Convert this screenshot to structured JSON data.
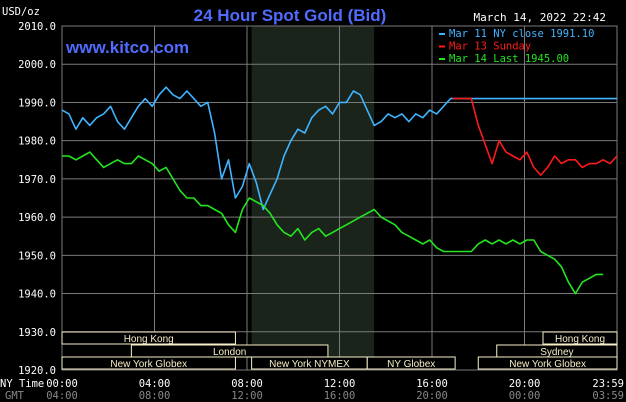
{
  "header": {
    "unit": "USD/oz",
    "title": "24 Hour Spot Gold (Bid)",
    "timestamp": "March 14, 2022 22:42",
    "website": "www.kitco.com"
  },
  "colors": {
    "background": "#000000",
    "grid": "#7a7a7a",
    "title": "#4f6cff",
    "website": "#4f6cff",
    "mar11": "#3fb4ff",
    "mar13": "#ff1a1a",
    "mar14": "#22e61e",
    "session_bar": "#f7efc8",
    "shade": "#1a241a"
  },
  "legend": [
    {
      "label": "Mar 11 NY close 1991.10",
      "color": "#3fb4ff"
    },
    {
      "label": "Mar 13 Sunday",
      "color": "#ff1a1a"
    },
    {
      "label": "Mar 14 Last 1945.00",
      "color": "#22e61e"
    }
  ],
  "time_axis": {
    "ny_label": "NY Time",
    "gmt_label": "GMT",
    "ny_ticks": [
      "00:00",
      "04:00",
      "08:00",
      "12:00",
      "16:00",
      "20:00",
      "23:59"
    ],
    "gmt_ticks": [
      "04:00",
      "08:00",
      "12:00",
      "16:00",
      "20:00",
      "00:00",
      "03:59"
    ]
  },
  "sessions": [
    {
      "name": "Hong Kong",
      "row": 0,
      "start": 0.0,
      "end": 7.5
    },
    {
      "name": "London",
      "row": 1,
      "start": 3.0,
      "end": 11.5
    },
    {
      "name": "New York Globex",
      "row": 2,
      "start": 0.0,
      "end": 7.5
    },
    {
      "name": "New York NYMEX",
      "row": 2,
      "start": 8.2,
      "end": 13.2
    },
    {
      "name": "NY Globex",
      "row": 2,
      "start": 13.2,
      "end": 17.0
    },
    {
      "name": "Hong Kong",
      "row": 0,
      "start": 20.8,
      "end": 24.0
    },
    {
      "name": "Sydney",
      "row": 1,
      "start": 18.8,
      "end": 24.0
    },
    {
      "name": "New York Globex",
      "row": 2,
      "start": 18.0,
      "end": 24.0
    }
  ],
  "shaded_region": {
    "start": 8.2,
    "end": 13.5
  },
  "chart_data": {
    "type": "line",
    "title": "24 Hour Spot Gold (Bid)",
    "ylabel": "USD/oz",
    "xlabel": "NY Time",
    "xlim": [
      0,
      24
    ],
    "ylim": [
      1920,
      2010
    ],
    "yticks": [
      "1920.0",
      "1930.0",
      "1940.0",
      "1950.0",
      "1960.0",
      "1970.0",
      "1980.0",
      "1990.0",
      "2000.0",
      "2010.0"
    ],
    "grid": true,
    "legend_position": "top-right",
    "series": [
      {
        "name": "Mar 11 NY close 1991.10",
        "color": "#3fb4ff",
        "x": [
          0,
          0.3,
          0.6,
          0.9,
          1.2,
          1.5,
          1.8,
          2.1,
          2.4,
          2.7,
          3.0,
          3.3,
          3.6,
          3.9,
          4.2,
          4.5,
          4.8,
          5.1,
          5.4,
          5.7,
          6.0,
          6.3,
          6.6,
          6.9,
          7.2,
          7.5,
          7.8,
          8.1,
          8.4,
          8.7,
          9.0,
          9.3,
          9.6,
          9.9,
          10.2,
          10.5,
          10.8,
          11.1,
          11.4,
          11.7,
          12.0,
          12.3,
          12.6,
          12.9,
          13.2,
          13.5,
          13.8,
          14.1,
          14.4,
          14.7,
          15.0,
          15.3,
          15.6,
          15.9,
          16.2,
          16.5,
          16.8,
          17.1,
          17.4,
          17.7,
          18.0,
          18.3,
          18.6,
          18.9,
          19.2,
          19.5,
          19.8,
          20.1,
          20.4,
          20.7,
          21.0,
          21.3,
          21.6,
          21.9,
          22.2,
          22.5,
          22.8,
          23.1,
          23.4,
          23.7,
          24.0
        ],
        "y": [
          1988,
          1987,
          1983,
          1986,
          1984,
          1986,
          1987,
          1989,
          1985,
          1983,
          1986,
          1989,
          1991,
          1989,
          1992,
          1994,
          1992,
          1991,
          1993,
          1991,
          1989,
          1990,
          1982,
          1970,
          1975,
          1965,
          1968,
          1974,
          1969,
          1962,
          1966,
          1970,
          1976,
          1980,
          1983,
          1982,
          1986,
          1988,
          1989,
          1987,
          1990,
          1990,
          1993,
          1992,
          1988,
          1984,
          1985,
          1987,
          1986,
          1987,
          1985,
          1987,
          1986,
          1988,
          1987,
          1989,
          1991,
          1991,
          1991,
          1991,
          1991,
          1991,
          1991,
          1991,
          1991,
          1991,
          1991,
          1991,
          1991,
          1991,
          1991,
          1991,
          1991,
          1991,
          1991,
          1991,
          1991,
          1991,
          1991,
          1991,
          1991
        ]
      },
      {
        "name": "Mar 13 Sunday",
        "color": "#ff1a1a",
        "x": [
          16.9,
          17.3,
          17.7,
          18.0,
          18.3,
          18.6,
          18.9,
          19.2,
          19.5,
          19.8,
          20.1,
          20.4,
          20.7,
          21.0,
          21.3,
          21.6,
          21.9,
          22.2,
          22.5,
          22.8,
          23.1,
          23.4,
          23.7,
          24.0
        ],
        "y": [
          1991,
          1991,
          1991,
          1984,
          1979,
          1974,
          1980,
          1977,
          1976,
          1975,
          1977,
          1973,
          1971,
          1973,
          1976,
          1974,
          1975,
          1975,
          1973,
          1974,
          1974,
          1975,
          1974,
          1976
        ]
      },
      {
        "name": "Mar 14 Last 1945.00",
        "color": "#22e61e",
        "x": [
          0,
          0.3,
          0.6,
          0.9,
          1.2,
          1.5,
          1.8,
          2.1,
          2.4,
          2.7,
          3.0,
          3.3,
          3.6,
          3.9,
          4.2,
          4.5,
          4.8,
          5.1,
          5.4,
          5.7,
          6.0,
          6.3,
          6.6,
          6.9,
          7.2,
          7.5,
          7.8,
          8.1,
          8.4,
          8.7,
          9.0,
          9.3,
          9.6,
          9.9,
          10.2,
          10.5,
          10.8,
          11.1,
          11.4,
          11.7,
          12.0,
          12.3,
          12.6,
          12.9,
          13.2,
          13.5,
          13.8,
          14.1,
          14.4,
          14.7,
          15.0,
          15.3,
          15.6,
          15.9,
          16.2,
          16.5,
          16.8,
          17.1,
          17.4,
          17.7,
          18.0,
          18.3,
          18.6,
          18.9,
          19.2,
          19.5,
          19.8,
          20.1,
          20.4,
          20.7,
          21.0,
          21.3,
          21.6,
          21.9,
          22.2,
          22.5,
          22.8,
          23.1,
          23.4
        ],
        "y": [
          1976,
          1976,
          1975,
          1976,
          1977,
          1975,
          1973,
          1974,
          1975,
          1974,
          1974,
          1976,
          1975,
          1974,
          1972,
          1973,
          1970,
          1967,
          1965,
          1965,
          1963,
          1963,
          1962,
          1961,
          1958,
          1956,
          1962,
          1965,
          1964,
          1963,
          1961,
          1958,
          1956,
          1955,
          1957,
          1954,
          1956,
          1957,
          1955,
          1956,
          1957,
          1958,
          1959,
          1960,
          1961,
          1962,
          1960,
          1959,
          1958,
          1956,
          1955,
          1954,
          1953,
          1954,
          1952,
          1951,
          1951,
          1951,
          1951,
          1951,
          1953,
          1954,
          1953,
          1954,
          1953,
          1954,
          1953,
          1954,
          1954,
          1951,
          1950,
          1949,
          1947,
          1943,
          1940,
          1943,
          1944,
          1945,
          1945
        ]
      }
    ]
  }
}
